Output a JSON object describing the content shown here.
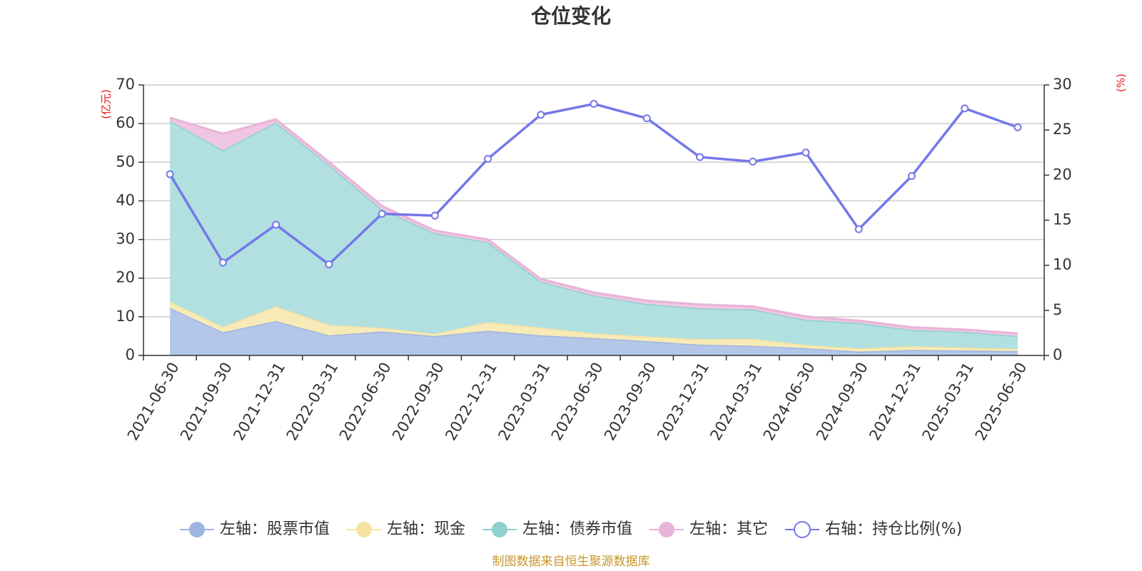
{
  "chart_data": {
    "type": "area",
    "title": "仓位变化",
    "left_axis_unit": "(亿元)",
    "right_axis_unit": "(%)",
    "categories": [
      "2021-06-30",
      "2021-09-30",
      "2021-12-31",
      "2022-03-31",
      "2022-06-30",
      "2022-09-30",
      "2022-12-31",
      "2023-03-31",
      "2023-06-30",
      "2023-09-30",
      "2023-12-31",
      "2024-03-31",
      "2024-06-30",
      "2024-09-30",
      "2024-12-31",
      "2025-03-31",
      "2025-06-30"
    ],
    "ylim_left": [
      0,
      70
    ],
    "yticks_left": [
      0,
      10,
      20,
      30,
      40,
      50,
      60,
      70
    ],
    "ylim_right": [
      0,
      30
    ],
    "yticks_right": [
      0,
      5,
      10,
      15,
      20,
      25,
      30
    ],
    "grid": true,
    "legend_position": "bottom",
    "series": [
      {
        "name": "左轴：股票市值",
        "axis": "left",
        "stack": true,
        "color": "#9db5e0",
        "fill": "#b5c7e8",
        "values": [
          12.3,
          6.0,
          8.9,
          5.2,
          6.2,
          5.0,
          6.4,
          5.2,
          4.5,
          3.7,
          2.8,
          2.5,
          1.9,
          1.0,
          1.4,
          1.3,
          1.1
        ]
      },
      {
        "name": "左轴：现金",
        "axis": "left",
        "stack": true,
        "color": "#f5e3a0",
        "fill": "#f8eab7",
        "values": [
          1.6,
          1.4,
          3.8,
          2.7,
          0.9,
          0.6,
          2.2,
          2.0,
          1.2,
          1.2,
          1.4,
          1.8,
          0.8,
          0.8,
          1.0,
          0.7,
          0.6
        ]
      },
      {
        "name": "左轴：债券市值",
        "axis": "left",
        "stack": true,
        "color": "#8fd0d0",
        "fill": "#b2e0e0",
        "values": [
          46.8,
          45.7,
          47.6,
          41.4,
          30.7,
          26.0,
          20.7,
          11.9,
          9.8,
          8.4,
          8.0,
          7.6,
          6.5,
          6.6,
          4.2,
          4.1,
          3.3
        ]
      },
      {
        "name": "左轴：其它",
        "axis": "left",
        "stack": true,
        "color": "#e8b4d8",
        "fill": "#efc6e3",
        "values": [
          0.8,
          4.3,
          0.8,
          0.8,
          0.9,
          0.7,
          0.7,
          0.7,
          0.8,
          0.9,
          1.0,
          0.8,
          0.9,
          0.6,
          0.7,
          0.6,
          0.7
        ]
      },
      {
        "name": "右轴：持仓比例(%)",
        "axis": "right",
        "type": "line",
        "color": "#7478e8",
        "values": [
          20.1,
          10.3,
          14.5,
          10.1,
          15.7,
          15.5,
          21.8,
          26.7,
          27.9,
          26.3,
          22.0,
          21.5,
          22.5,
          14.0,
          19.9,
          27.4,
          25.3
        ]
      }
    ]
  },
  "footer": {
    "source": "制图数据来自恒生聚源数据库"
  }
}
